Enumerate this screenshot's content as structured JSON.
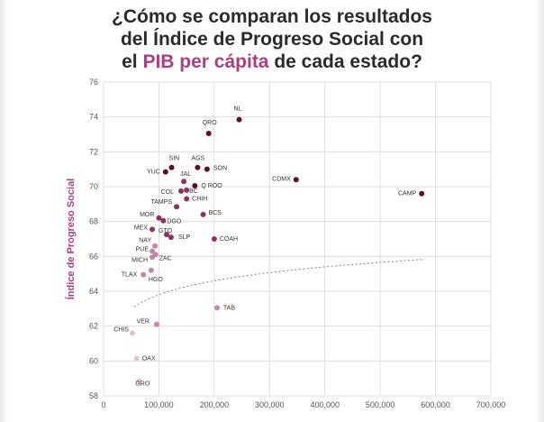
{
  "title": {
    "line1": "¿Cómo se comparan los resultados",
    "line2": "del Índice de Progreso Social con",
    "line3_pre": "el",
    "line3_highlight": "PIB per cápita",
    "line3_post": "de cada estado?"
  },
  "colors": {
    "accent": "#a8407f",
    "grid": "#d9d9d9",
    "trend": "#8c8c8c",
    "dark": "#5c0f2e",
    "mid": "#8a3560",
    "light": "#bf87a8",
    "pale": "#e0c4d4"
  },
  "chart_data": {
    "type": "scatter",
    "title": "¿Cómo se comparan los resultados del Índice de Progreso Social con el PIB per cápita de cada estado?",
    "xlabel": "",
    "ylabel": "Índice de Progreso Social",
    "xlim": [
      0,
      700000
    ],
    "ylim": [
      58,
      76
    ],
    "xticks": [
      0,
      100000,
      200000,
      300000,
      400000,
      500000,
      600000,
      700000
    ],
    "xtick_labels": [
      "0",
      "100,000",
      "200,000",
      "300,000",
      "400,000",
      "500,000",
      "600,000",
      "700,000"
    ],
    "yticks": [
      58,
      60,
      62,
      64,
      66,
      68,
      70,
      72,
      74,
      76
    ],
    "ytick_labels": [
      "58",
      "60",
      "62",
      "64",
      "66",
      "68",
      "70",
      "72",
      "74",
      "76"
    ],
    "grid": true,
    "trendline": "logarithmic",
    "points": [
      {
        "label": "NL",
        "x": 245000,
        "y": 73.85,
        "shade": "dark"
      },
      {
        "label": "QRO",
        "x": 190000,
        "y": 73.05,
        "shade": "dark"
      },
      {
        "label": "SIN",
        "x": 123000,
        "y": 71.1,
        "shade": "dark"
      },
      {
        "label": "AGS",
        "x": 170000,
        "y": 71.1,
        "shade": "dark"
      },
      {
        "label": "SON",
        "x": 187000,
        "y": 71.0,
        "shade": "dark"
      },
      {
        "label": "YUC",
        "x": 112000,
        "y": 70.85,
        "shade": "dark"
      },
      {
        "label": "CDMX",
        "x": 348000,
        "y": 70.4,
        "shade": "dark"
      },
      {
        "label": "CAMP",
        "x": 575000,
        "y": 69.6,
        "shade": "dark"
      },
      {
        "label": "JAL",
        "x": 145000,
        "y": 70.3,
        "shade": "mid"
      },
      {
        "label": "Q ROO",
        "x": 165000,
        "y": 70.05,
        "shade": "dark"
      },
      {
        "label": "COL",
        "x": 140000,
        "y": 69.75,
        "shade": "mid"
      },
      {
        "label": "BC",
        "x": 150000,
        "y": 69.8,
        "shade": "mid"
      },
      {
        "label": "CHIH",
        "x": 150000,
        "y": 69.3,
        "shade": "mid"
      },
      {
        "label": "TAMPS",
        "x": 132000,
        "y": 68.85,
        "shade": "mid"
      },
      {
        "label": "BCS",
        "x": 180000,
        "y": 68.4,
        "shade": "mid"
      },
      {
        "label": "MOR",
        "x": 100000,
        "y": 68.2,
        "shade": "mid"
      },
      {
        "label": "DGO",
        "x": 108000,
        "y": 68.05,
        "shade": "mid"
      },
      {
        "label": "MEX",
        "x": 88000,
        "y": 67.55,
        "shade": "mid"
      },
      {
        "label": "GTO",
        "x": 114000,
        "y": 67.25,
        "shade": "mid"
      },
      {
        "label": "SLP",
        "x": 122000,
        "y": 67.1,
        "shade": "mid"
      },
      {
        "label": "COAH",
        "x": 200000,
        "y": 67.0,
        "shade": "mid"
      },
      {
        "label": "NAY",
        "x": 93000,
        "y": 66.6,
        "shade": "light"
      },
      {
        "label": "PUE",
        "x": 88000,
        "y": 66.3,
        "shade": "light"
      },
      {
        "label": "ZAC",
        "x": 94000,
        "y": 66.1,
        "shade": "light"
      },
      {
        "label": "MICH",
        "x": 88000,
        "y": 65.95,
        "shade": "light"
      },
      {
        "label": "TLAX",
        "x": 72000,
        "y": 64.95,
        "shade": "light"
      },
      {
        "label": "HGO",
        "x": 86000,
        "y": 65.2,
        "shade": "light"
      },
      {
        "label": "TAB",
        "x": 205000,
        "y": 63.05,
        "shade": "light"
      },
      {
        "label": "VER",
        "x": 96000,
        "y": 62.1,
        "shade": "light"
      },
      {
        "label": "CHIS",
        "x": 52000,
        "y": 61.6,
        "shade": "pale"
      },
      {
        "label": "OAX",
        "x": 60000,
        "y": 60.15,
        "shade": "pale"
      },
      {
        "label": "GRO",
        "x": 64000,
        "y": 58.85,
        "shade": "pale"
      }
    ]
  }
}
